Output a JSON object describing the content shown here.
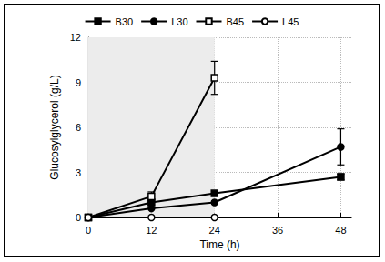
{
  "chart_data": {
    "type": "line",
    "x_label": "Time (h)",
    "y_label": "Glucosylglycerol (g/L)",
    "x": [
      0,
      12,
      24,
      48
    ],
    "xlim": [
      0,
      50
    ],
    "xticks": [
      0,
      12,
      24,
      36,
      48
    ],
    "ylim": [
      0,
      12
    ],
    "yticks": [
      0,
      3,
      6,
      9,
      12
    ],
    "grid": true,
    "legend": "top",
    "shaded_x": [
      0,
      24
    ],
    "series": [
      {
        "name": "B30",
        "color": "#000000",
        "marker": "square",
        "values": [
          0,
          1.0,
          1.6,
          2.7
        ],
        "errors": [
          null,
          null,
          null,
          0.2
        ]
      },
      {
        "name": "L30",
        "color": "#000000",
        "marker": "circle",
        "values": [
          0,
          0.6,
          1.0,
          4.7
        ],
        "errors": [
          null,
          null,
          null,
          1.2
        ]
      },
      {
        "name": "B45",
        "color": "#000000",
        "marker": "square-open",
        "values": [
          0,
          1.4,
          9.3,
          null
        ],
        "errors": [
          null,
          0.3,
          1.1,
          null
        ]
      },
      {
        "name": "L45",
        "color": "#000000",
        "marker": "circle-open",
        "values": [
          0,
          0,
          0,
          null
        ],
        "errors": [
          null,
          null,
          null,
          null
        ]
      }
    ]
  }
}
